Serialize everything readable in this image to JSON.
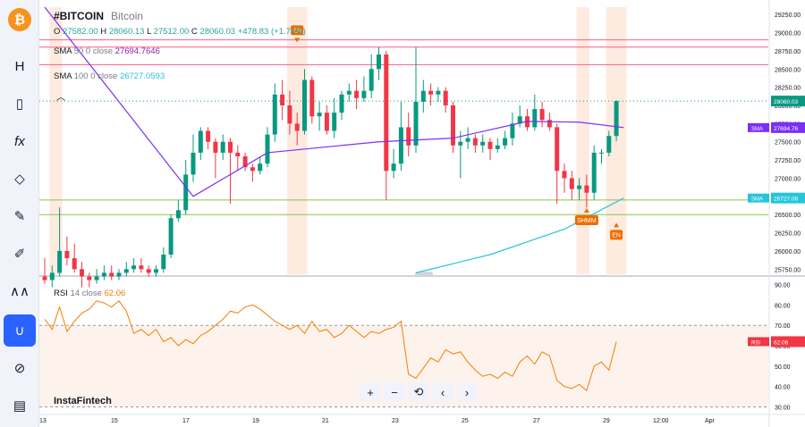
{
  "symbol": {
    "ticker": "#BITCOIN",
    "name": "Bitcoin"
  },
  "ohlc": {
    "o_label": "O",
    "o": "27582.00",
    "h_label": "H",
    "h": "28060.13",
    "l_label": "L",
    "l": "27512.00",
    "c_label": "C",
    "c": "28060.03",
    "change": "+478.83 (+1.74%)"
  },
  "sma50": {
    "label": "SMA",
    "params": "50 0 close",
    "value": "27694.7646"
  },
  "sma100": {
    "label": "SMA",
    "params": "100 0 close",
    "value": "26727.0593"
  },
  "rsi": {
    "label": "RSI",
    "params": "14 close",
    "value": "62.06"
  },
  "watermark": "InstaFintech",
  "sidebar_icons": [
    "bitcoin-logo",
    "text-tool-icon",
    "candles-icon",
    "fx-icon",
    "trendline-icon",
    "brush-icon",
    "pencil-icon",
    "pattern-icon",
    "magnet-icon",
    "eye-off-icon",
    "trash-icon"
  ],
  "nav_buttons": [
    "+",
    "−",
    "⟲",
    "‹",
    "›"
  ],
  "colors": {
    "up": "#089981",
    "down": "#f23645",
    "sma50": "#7b2ff7",
    "sma100": "#26c6da",
    "rsi": "#f57c00",
    "highlight": "#fde6d8",
    "signal": "#ef6c00"
  },
  "chart_data": {
    "type": "candlestick",
    "price_axis": {
      "ticks": [
        "29250.00",
        "29000.00",
        "28750.00",
        "28500.00",
        "28250.00",
        "28000.00",
        "27750.00",
        "27500.00",
        "27250.00",
        "27000.00",
        "26750.00",
        "26500.00",
        "26250.00",
        "26000.00",
        "25750.00"
      ],
      "ylim": [
        25680,
        29350
      ]
    },
    "x_axis": {
      "ticks": [
        "13",
        "15",
        "17",
        "19",
        "21",
        "23",
        "25",
        "27",
        "29",
        "12:00",
        "Apr"
      ]
    },
    "candles": [
      [
        25650,
        25600,
        25900,
        25550
      ],
      [
        25600,
        25700,
        25800,
        25500
      ],
      [
        25700,
        26000,
        26600,
        25650
      ],
      [
        26000,
        25900,
        26200,
        25800
      ],
      [
        25900,
        25750,
        26100,
        25700
      ],
      [
        25750,
        25650,
        25850,
        25500
      ],
      [
        25650,
        25600,
        25700,
        25500
      ],
      [
        25600,
        25650,
        25750,
        25550
      ],
      [
        25650,
        25700,
        25800,
        25600
      ],
      [
        25700,
        25650,
        25800,
        25600
      ],
      [
        25650,
        25700,
        25750,
        25600
      ],
      [
        25700,
        25750,
        25850,
        25650
      ],
      [
        25750,
        25800,
        25900,
        25700
      ],
      [
        25800,
        25750,
        25900,
        25700
      ],
      [
        25750,
        25700,
        25800,
        25650
      ],
      [
        25700,
        25750,
        25800,
        25650
      ],
      [
        25750,
        25950,
        26050,
        25700
      ],
      [
        25950,
        26450,
        26500,
        25900
      ],
      [
        26450,
        26560,
        26700,
        26400
      ],
      [
        26560,
        27050,
        27250,
        26500
      ],
      [
        27050,
        27350,
        27600,
        26950
      ],
      [
        27350,
        27650,
        27700,
        27250
      ],
      [
        27650,
        27500,
        27700,
        27400
      ],
      [
        27500,
        27350,
        27550,
        27000
      ],
      [
        27350,
        27500,
        27600,
        27250
      ],
      [
        27500,
        27350,
        27550,
        26650
      ],
      [
        27350,
        27300,
        27450,
        27100
      ],
      [
        27300,
        27150,
        27350,
        27100
      ],
      [
        27150,
        27100,
        27200,
        26950
      ],
      [
        27100,
        27200,
        27300,
        27050
      ],
      [
        27200,
        27600,
        27700,
        27150
      ],
      [
        27600,
        28150,
        28300,
        27500
      ],
      [
        28150,
        28000,
        28350,
        27800
      ],
      [
        28000,
        27750,
        28200,
        27600
      ],
      [
        27750,
        27650,
        27900,
        27450
      ],
      [
        27650,
        28350,
        28500,
        27600
      ],
      [
        28350,
        27850,
        28400,
        27750
      ],
      [
        27850,
        27900,
        28050,
        27650
      ],
      [
        27900,
        27650,
        28000,
        27600
      ],
      [
        27650,
        27900,
        28100,
        27550
      ],
      [
        27900,
        28150,
        28200,
        27800
      ],
      [
        28150,
        28200,
        28300,
        28050
      ],
      [
        28200,
        28100,
        28350,
        27950
      ],
      [
        28100,
        28200,
        28400,
        28050
      ],
      [
        28200,
        28500,
        28700,
        28100
      ],
      [
        28500,
        28700,
        28800,
        28350
      ],
      [
        28700,
        27100,
        28750,
        26700
      ],
      [
        27100,
        27200,
        27400,
        27000
      ],
      [
        27200,
        27700,
        28050,
        27100
      ],
      [
        27700,
        27450,
        27900,
        27300
      ],
      [
        27450,
        28050,
        28800,
        27350
      ],
      [
        28050,
        28200,
        28350,
        27900
      ],
      [
        28200,
        28150,
        28300,
        28000
      ],
      [
        28150,
        28200,
        28250,
        28050
      ],
      [
        28200,
        28000,
        28250,
        27900
      ],
      [
        28000,
        27450,
        28050,
        27350
      ],
      [
        27450,
        27500,
        27650,
        27000
      ],
      [
        27500,
        27550,
        27700,
        27400
      ],
      [
        27550,
        27450,
        27600,
        27350
      ],
      [
        27450,
        27500,
        27600,
        27350
      ],
      [
        27500,
        27400,
        27550,
        27250
      ],
      [
        27400,
        27450,
        27550,
        27350
      ],
      [
        27450,
        27550,
        27650,
        27400
      ],
      [
        27550,
        27750,
        27900,
        27450
      ],
      [
        27750,
        27850,
        28000,
        27700
      ],
      [
        27850,
        27700,
        27950,
        27650
      ],
      [
        27700,
        27950,
        28150,
        27650
      ],
      [
        27950,
        27800,
        28050,
        27700
      ],
      [
        27800,
        27700,
        27900,
        27650
      ],
      [
        27700,
        27100,
        27750,
        26650
      ],
      [
        27100,
        27000,
        27200,
        26800
      ],
      [
        27000,
        26850,
        27100,
        26700
      ],
      [
        26850,
        26900,
        27000,
        26700
      ],
      [
        26900,
        26800,
        27050,
        26600
      ],
      [
        26800,
        27350,
        27450,
        26700
      ],
      [
        27350,
        27350,
        27400,
        27200
      ],
      [
        27350,
        27580,
        27650,
        27300
      ],
      [
        27580,
        28060,
        28070,
        27510
      ]
    ],
    "sma50_points": [
      [
        0,
        32000
      ],
      [
        20,
        26750
      ],
      [
        30,
        27350
      ],
      [
        45,
        27500
      ],
      [
        55,
        27550
      ],
      [
        65,
        27780
      ],
      [
        72,
        27770
      ],
      [
        78,
        27695
      ]
    ],
    "sma100_points": [
      [
        50,
        25700
      ],
      [
        60,
        25950
      ],
      [
        70,
        26300
      ],
      [
        78,
        26727
      ]
    ],
    "hlines": [
      28900,
      28800,
      28560,
      26700,
      26500
    ],
    "highlight_zones": [
      [
        1,
        2
      ],
      [
        33,
        35
      ],
      [
        72,
        73
      ],
      [
        76,
        78
      ]
    ],
    "signals": [
      {
        "label": "EN",
        "index": 34,
        "dir": "down",
        "price": 28830
      },
      {
        "label": "EN",
        "index": 77,
        "dir": "up",
        "price": 26400
      },
      {
        "label": "SHMM",
        "index": 73,
        "dir": "up",
        "price": 26600
      }
    ],
    "last_price_tag": "28060.03",
    "sma_tags": [
      {
        "label": "SMA",
        "value": "27694.76"
      },
      {
        "label": "SMA",
        "value": "26727.06"
      }
    ],
    "rsi_axis": {
      "ticks": [
        "90.00",
        "80.00",
        "70.00",
        "60.00",
        "50.00",
        "40.00",
        "30.00"
      ],
      "ylim": [
        28,
        92
      ],
      "levels": [
        70,
        30
      ]
    },
    "rsi_values": [
      73,
      68,
      79,
      67,
      72,
      76,
      78,
      82,
      81,
      79,
      82,
      77,
      66,
      68,
      65,
      68,
      62,
      64,
      60,
      63,
      61,
      65,
      67,
      70,
      73,
      77,
      76,
      79,
      80,
      78,
      75,
      72,
      70,
      68,
      70,
      66,
      72,
      67,
      68,
      64,
      66,
      70,
      67,
      64,
      67,
      66,
      68,
      69,
      72,
      46,
      44,
      49,
      54,
      52,
      58,
      56,
      57,
      52,
      48,
      45,
      46,
      44,
      47,
      45,
      52,
      55,
      51,
      57,
      55,
      43,
      40,
      39,
      41,
      38,
      50,
      52,
      48,
      62
    ]
  }
}
